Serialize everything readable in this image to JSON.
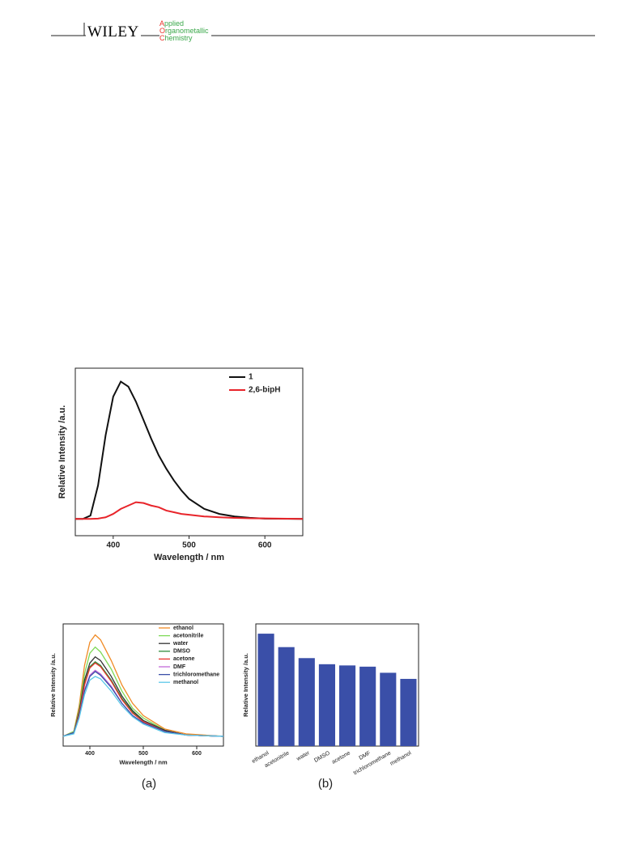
{
  "header": {
    "publisher": "WILEY",
    "journal": [
      "Applied",
      "Organometallic",
      "Chemistry"
    ]
  },
  "chart_data": [
    {
      "type": "line",
      "xlabel": "Wavelength / nm",
      "ylabel": "Relative Intensity /a.u.",
      "xlim": [
        350,
        650
      ],
      "ylim": [
        0,
        100
      ],
      "xticks": [
        400,
        500,
        600
      ],
      "legend": "upper right",
      "x": [
        350,
        360,
        370,
        380,
        390,
        400,
        410,
        420,
        430,
        440,
        450,
        460,
        470,
        480,
        490,
        500,
        520,
        540,
        560,
        580,
        600,
        650
      ],
      "series": [
        {
          "name": "1",
          "color": "#111111",
          "values": [
            10,
            10,
            12,
            30,
            60,
            83,
            92,
            89,
            80,
            69,
            58,
            48,
            40,
            33,
            27,
            22,
            16,
            13,
            11.5,
            10.7,
            10.2,
            10
          ]
        },
        {
          "name": "2,6-bipH",
          "color": "#e8242a",
          "values": [
            10,
            10,
            10,
            10.2,
            11,
            13,
            16,
            18,
            20,
            19.5,
            18,
            17,
            15,
            14,
            13,
            12.5,
            11.5,
            11,
            10.6,
            10.4,
            10.3,
            10
          ]
        }
      ]
    },
    {
      "type": "line",
      "label": "(a)",
      "xlabel": "Wavelength / nm",
      "ylabel": "Relative Intensity /a.u.",
      "xlim": [
        350,
        650
      ],
      "ylim": [
        0,
        100
      ],
      "xticks": [
        400,
        500,
        600
      ],
      "legend": "upper right",
      "x": [
        350,
        370,
        380,
        390,
        400,
        410,
        420,
        440,
        460,
        480,
        500,
        540,
        580,
        650
      ],
      "series": [
        {
          "name": "ethanol",
          "color": "#f08a24",
          "values": [
            8,
            12,
            33,
            66,
            85,
            91,
            87,
            70,
            50,
            35,
            25,
            14,
            10,
            8
          ]
        },
        {
          "name": "acetonitrile",
          "color": "#7ed957",
          "values": [
            8,
            12,
            30,
            59,
            76,
            81,
            77,
            63,
            45,
            31,
            23,
            13,
            9,
            8
          ]
        },
        {
          "name": "water",
          "color": "#333333",
          "values": [
            8,
            11,
            28,
            54,
            68,
            73,
            70,
            57,
            41,
            29,
            21,
            13,
            9,
            8
          ]
        },
        {
          "name": "DMSO",
          "color": "#2e8b3a",
          "values": [
            8,
            11,
            26,
            51,
            65,
            69,
            66,
            54,
            39,
            28,
            20,
            12,
            9,
            8
          ]
        },
        {
          "name": "acetone",
          "color": "#e8322a",
          "values": [
            8,
            11,
            26,
            50,
            64,
            68,
            65,
            53,
            38,
            27,
            20,
            12,
            9,
            8
          ]
        },
        {
          "name": "DMF",
          "color": "#c36ad8",
          "values": [
            8,
            11,
            24,
            46,
            58,
            62,
            59,
            49,
            35,
            25,
            19,
            12,
            9,
            8
          ]
        },
        {
          "name": "trichloromethane",
          "color": "#3a4fa8",
          "values": [
            8,
            11,
            24,
            45,
            57,
            61,
            58,
            48,
            35,
            25,
            19,
            12,
            9,
            8
          ]
        },
        {
          "name": "methanol",
          "color": "#5bc8e8",
          "values": [
            8,
            10,
            23,
            42,
            54,
            57,
            55,
            45,
            33,
            24,
            18,
            11,
            9,
            8
          ]
        }
      ]
    },
    {
      "type": "bar",
      "label": "(b)",
      "ylabel": "Relative Intensity /a.u.",
      "ylim": [
        0,
        100
      ],
      "color": "#3a4fa8",
      "categories": [
        "ethanol",
        "acetonitrile",
        "water",
        "DMSO",
        "acetone",
        "DMF",
        "trichloromethane",
        "methanol"
      ],
      "values": [
        92,
        81,
        72,
        67,
        66,
        65,
        60,
        55
      ]
    }
  ]
}
